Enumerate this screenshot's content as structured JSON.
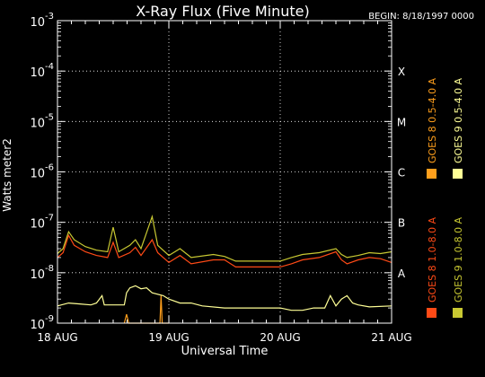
{
  "chart_data": {
    "type": "line",
    "title": "X-Ray Flux (Five Minute)",
    "begin": "BEGIN: 8/18/1997 0000",
    "xlabel": "Universal Time",
    "ylabel": "Watts meter2",
    "x_ticks": [
      "18 AUG",
      "19 AUG",
      "20 AUG",
      "21 AUG"
    ],
    "xlim": [
      "1997-08-18 00:00",
      "1997-08-21 00:00"
    ],
    "y_scale": "log",
    "ylim": [
      1e-09,
      0.001
    ],
    "y_ticks": [
      {
        "mantissa": "10",
        "exp": "-9",
        "value": 1e-09
      },
      {
        "mantissa": "10",
        "exp": "-8",
        "value": 1e-08
      },
      {
        "mantissa": "10",
        "exp": "-7",
        "value": 1e-07
      },
      {
        "mantissa": "10",
        "exp": "-6",
        "value": 1e-06
      },
      {
        "mantissa": "10",
        "exp": "-5",
        "value": 1e-05
      },
      {
        "mantissa": "10",
        "exp": "-4",
        "value": 0.0001
      },
      {
        "mantissa": "10",
        "exp": "-3",
        "value": 0.001
      }
    ],
    "flare_classes": [
      {
        "label": "A",
        "value": 1e-08
      },
      {
        "label": "B",
        "value": 1e-07
      },
      {
        "label": "C",
        "value": 1e-06
      },
      {
        "label": "M",
        "value": 1e-05
      },
      {
        "label": "X",
        "value": 0.0001
      }
    ],
    "grid": "dotted horizontal at flare class levels; dotted vertical at day boundaries",
    "legend_placement": "right, rotated",
    "series": [
      {
        "name": "GOES 8 1.0-8.0 A",
        "color": "#ff4a16",
        "points": [
          [
            0,
            2e-08
          ],
          [
            0.05,
            2.5e-08
          ],
          [
            0.1,
            5.5e-08
          ],
          [
            0.15,
            3.5e-08
          ],
          [
            0.25,
            2.6e-08
          ],
          [
            0.35,
            2.2e-08
          ],
          [
            0.45,
            2e-08
          ],
          [
            0.5,
            4e-08
          ],
          [
            0.55,
            2e-08
          ],
          [
            0.65,
            2.5e-08
          ],
          [
            0.7,
            3.2e-08
          ],
          [
            0.75,
            2.2e-08
          ],
          [
            0.85,
            4.5e-08
          ],
          [
            0.9,
            2.5e-08
          ],
          [
            1.0,
            1.6e-08
          ],
          [
            1.1,
            2.2e-08
          ],
          [
            1.2,
            1.5e-08
          ],
          [
            1.4,
            1.8e-08
          ],
          [
            1.5,
            1.8e-08
          ],
          [
            1.6,
            1.3e-08
          ],
          [
            1.8,
            1.3e-08
          ],
          [
            2.0,
            1.3e-08
          ],
          [
            2.1,
            1.5e-08
          ],
          [
            2.2,
            1.8e-08
          ],
          [
            2.35,
            2e-08
          ],
          [
            2.5,
            2.6e-08
          ],
          [
            2.55,
            1.8e-08
          ],
          [
            2.6,
            1.5e-08
          ],
          [
            2.7,
            1.8e-08
          ],
          [
            2.8,
            2e-08
          ],
          [
            2.9,
            1.9e-08
          ],
          [
            3.0,
            1.6e-08
          ]
        ]
      },
      {
        "name": "GOES 8 0.5-4.0 A",
        "color": "#ff9f1c",
        "points": [
          [
            0.6,
            1e-09
          ],
          [
            0.62,
            1.5e-09
          ],
          [
            0.64,
            1e-09
          ],
          [
            0.92,
            1e-09
          ],
          [
            0.93,
            3.5e-09
          ],
          [
            0.94,
            1e-09
          ],
          [
            1.0,
            1e-09
          ]
        ]
      },
      {
        "name": "GOES 9 1.0-8.0 A",
        "color": "#c8c832",
        "points": [
          [
            0,
            2.4e-08
          ],
          [
            0.05,
            3e-08
          ],
          [
            0.1,
            6.5e-08
          ],
          [
            0.15,
            4.5e-08
          ],
          [
            0.25,
            3.3e-08
          ],
          [
            0.35,
            2.8e-08
          ],
          [
            0.45,
            2.6e-08
          ],
          [
            0.5,
            8e-08
          ],
          [
            0.55,
            2.6e-08
          ],
          [
            0.65,
            3.5e-08
          ],
          [
            0.7,
            4.5e-08
          ],
          [
            0.75,
            3e-08
          ],
          [
            0.85,
            1.3e-07
          ],
          [
            0.9,
            3.5e-08
          ],
          [
            1.0,
            2.2e-08
          ],
          [
            1.1,
            3e-08
          ],
          [
            1.2,
            2e-08
          ],
          [
            1.4,
            2.3e-08
          ],
          [
            1.5,
            2.1e-08
          ],
          [
            1.6,
            1.7e-08
          ],
          [
            1.8,
            1.7e-08
          ],
          [
            2.0,
            1.7e-08
          ],
          [
            2.1,
            2e-08
          ],
          [
            2.2,
            2.3e-08
          ],
          [
            2.35,
            2.5e-08
          ],
          [
            2.5,
            3e-08
          ],
          [
            2.55,
            2.3e-08
          ],
          [
            2.6,
            2e-08
          ],
          [
            2.7,
            2.2e-08
          ],
          [
            2.8,
            2.5e-08
          ],
          [
            2.9,
            2.4e-08
          ],
          [
            3.0,
            2.6e-08
          ]
        ]
      },
      {
        "name": "GOES 9 0.5-4.0 A",
        "color": "#ffff96",
        "points": [
          [
            0,
            2.2e-09
          ],
          [
            0.1,
            2.5e-09
          ],
          [
            0.2,
            2.4e-09
          ],
          [
            0.3,
            2.3e-09
          ],
          [
            0.35,
            2.5e-09
          ],
          [
            0.4,
            3.5e-09
          ],
          [
            0.42,
            2.3e-09
          ],
          [
            0.6,
            2.3e-09
          ],
          [
            0.62,
            4e-09
          ],
          [
            0.65,
            5e-09
          ],
          [
            0.7,
            5.5e-09
          ],
          [
            0.75,
            4.8e-09
          ],
          [
            0.8,
            5e-09
          ],
          [
            0.85,
            4e-09
          ],
          [
            0.95,
            3.5e-09
          ],
          [
            1.0,
            3e-09
          ],
          [
            1.1,
            2.5e-09
          ],
          [
            1.2,
            2.5e-09
          ],
          [
            1.3,
            2.2e-09
          ],
          [
            1.5,
            2e-09
          ],
          [
            1.8,
            2e-09
          ],
          [
            2.0,
            2e-09
          ],
          [
            2.1,
            1.8e-09
          ],
          [
            2.2,
            1.8e-09
          ],
          [
            2.3,
            2e-09
          ],
          [
            2.4,
            2e-09
          ],
          [
            2.45,
            3.5e-09
          ],
          [
            2.5,
            2.2e-09
          ],
          [
            2.55,
            3e-09
          ],
          [
            2.6,
            3.5e-09
          ],
          [
            2.65,
            2.5e-09
          ],
          [
            2.7,
            2.3e-09
          ],
          [
            2.8,
            2.1e-09
          ],
          [
            3.0,
            2.2e-09
          ]
        ]
      }
    ]
  }
}
